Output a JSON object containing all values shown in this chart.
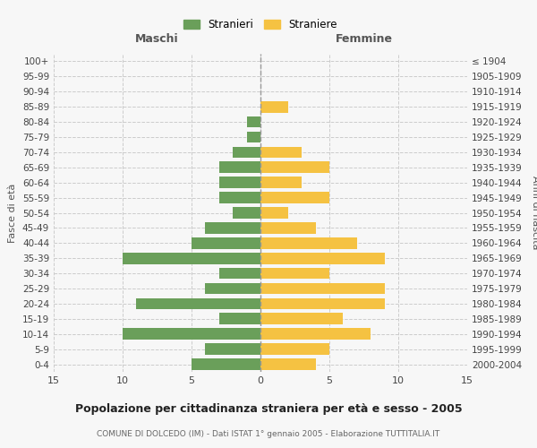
{
  "age_groups": [
    "0-4",
    "5-9",
    "10-14",
    "15-19",
    "20-24",
    "25-29",
    "30-34",
    "35-39",
    "40-44",
    "45-49",
    "50-54",
    "55-59",
    "60-64",
    "65-69",
    "70-74",
    "75-79",
    "80-84",
    "85-89",
    "90-94",
    "95-99",
    "100+"
  ],
  "birth_years": [
    "2000-2004",
    "1995-1999",
    "1990-1994",
    "1985-1989",
    "1980-1984",
    "1975-1979",
    "1970-1974",
    "1965-1969",
    "1960-1964",
    "1955-1959",
    "1950-1954",
    "1945-1949",
    "1940-1944",
    "1935-1939",
    "1930-1934",
    "1925-1929",
    "1920-1924",
    "1915-1919",
    "1910-1914",
    "1905-1909",
    "≤ 1904"
  ],
  "maschi": [
    5,
    4,
    10,
    3,
    9,
    4,
    3,
    10,
    5,
    4,
    2,
    3,
    3,
    3,
    2,
    1,
    1,
    0,
    0,
    0,
    0
  ],
  "femmine": [
    4,
    5,
    8,
    6,
    9,
    9,
    5,
    9,
    7,
    4,
    2,
    5,
    3,
    5,
    3,
    0,
    0,
    2,
    0,
    0,
    0
  ],
  "maschi_color": "#6a9f5a",
  "femmine_color": "#f5c242",
  "title": "Popolazione per cittadinanza straniera per età e sesso - 2005",
  "subtitle": "COMUNE DI DOLCEDO (IM) - Dati ISTAT 1° gennaio 2005 - Elaborazione TUTTITALIA.IT",
  "xlabel_left": "Maschi",
  "xlabel_right": "Femmine",
  "ylabel_left": "Fasce di età",
  "ylabel_right": "Anni di nascita",
  "legend_maschi": "Stranieri",
  "legend_femmine": "Straniere",
  "xlim": 15,
  "bg_color": "#f7f7f7",
  "grid_color": "#cccccc",
  "bar_height": 0.75
}
